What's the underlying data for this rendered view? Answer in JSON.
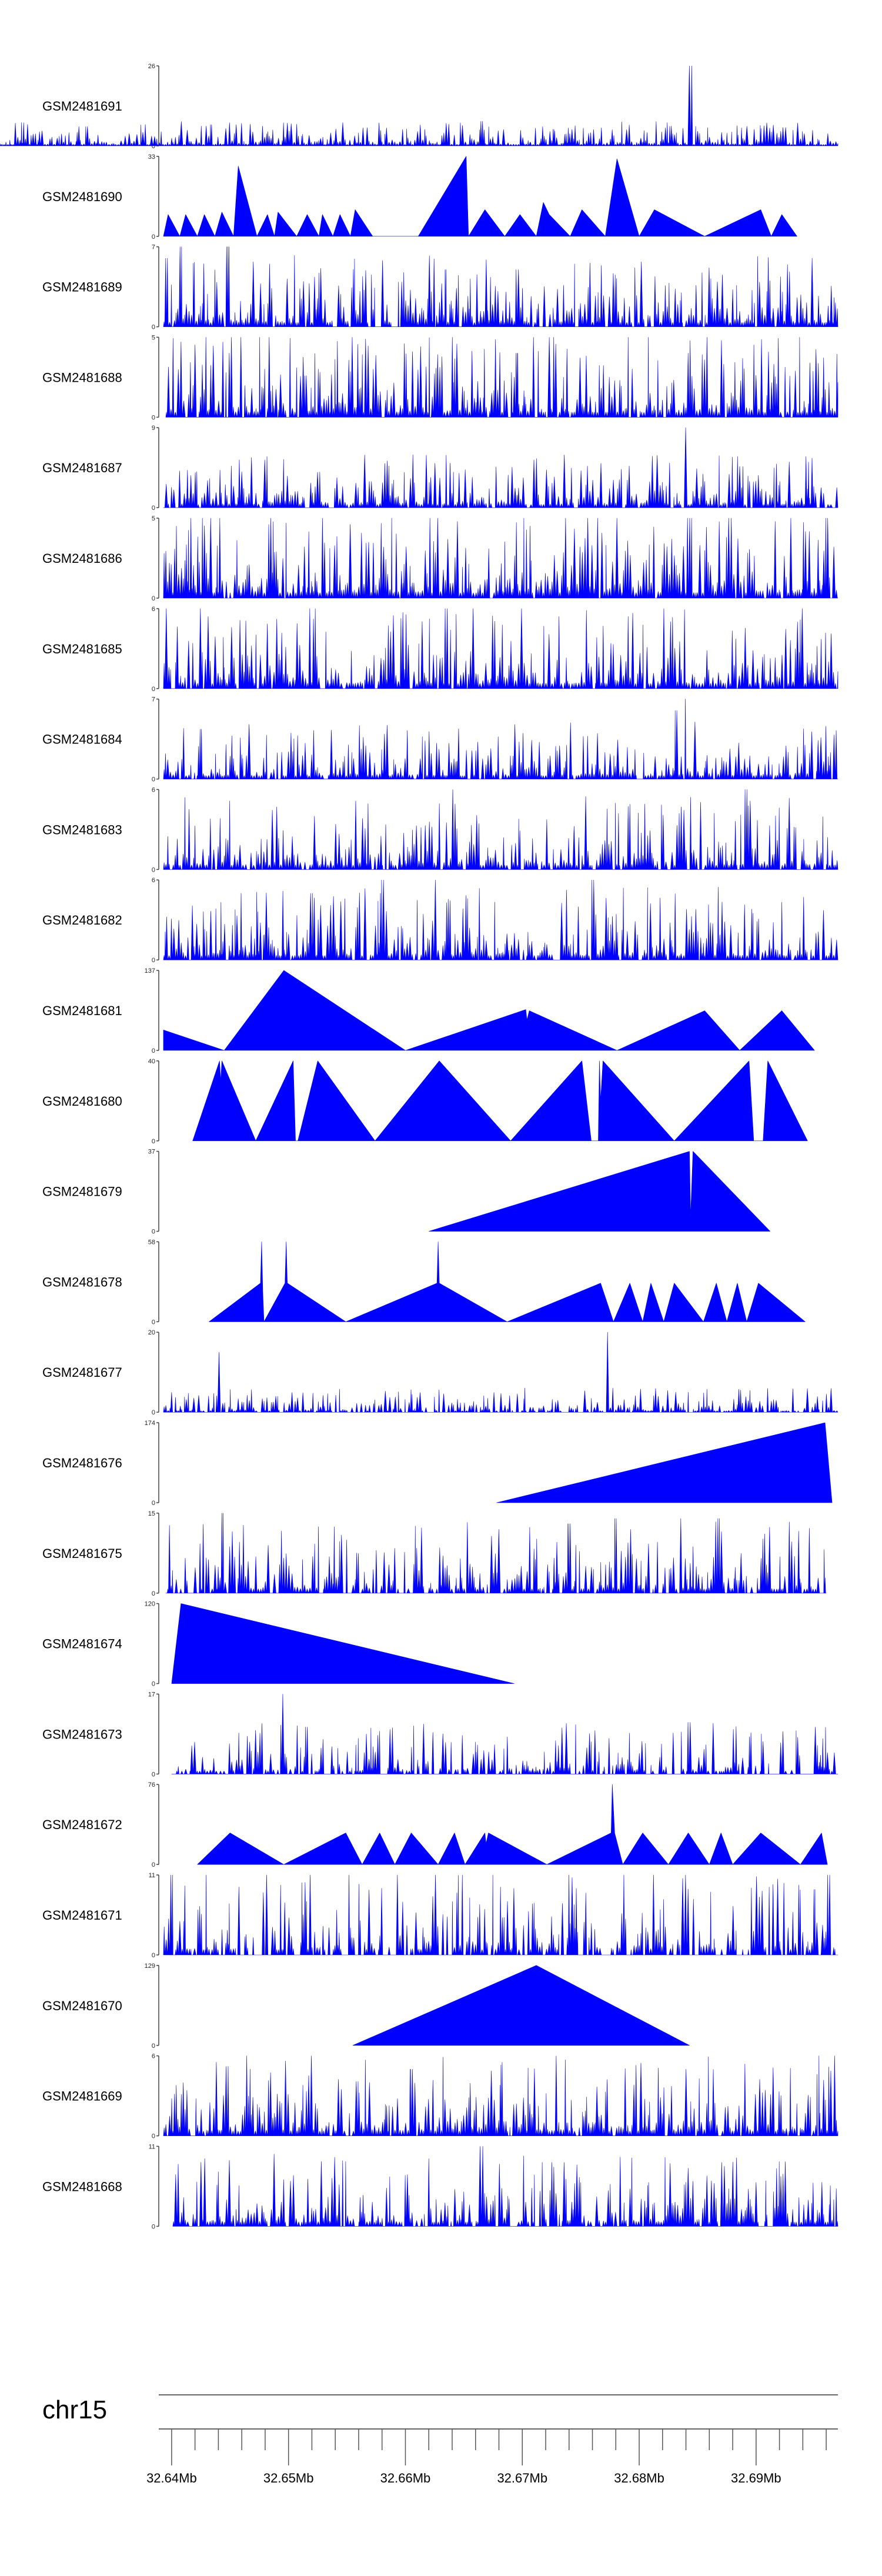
{
  "chart_data": {
    "type": "area",
    "chromosome": "chr15",
    "x_unit": "Mb",
    "xlim": [
      32.639,
      32.697
    ],
    "x_ticks": [
      32.64,
      32.65,
      32.66,
      32.67,
      32.68,
      32.69
    ],
    "x_tick_labels": [
      "32.64Mb",
      "32.65Mb",
      "32.66Mb",
      "32.67Mb",
      "32.68Mb",
      "32.69Mb"
    ],
    "minor_tick_step": 0.002,
    "fill_color": "#0000ff",
    "tracks": [
      {
        "name": "GSM2481691",
        "ymax": 26,
        "style": "dense",
        "seed": 11,
        "density": 1.0,
        "amp": 0.12,
        "start": 0.64,
        "end": 32.697,
        "peaks": [
          [
            32.6844,
            26
          ],
          [
            32.6455,
            6
          ],
          [
            32.6665,
            8
          ],
          [
            32.6924,
            6
          ]
        ]
      },
      {
        "name": "GSM2481690",
        "ymax": 33,
        "style": "tri",
        "vertices": [
          [
            32.6393,
            0
          ],
          [
            32.6397,
            9
          ],
          [
            32.6407,
            0
          ],
          [
            32.6412,
            9
          ],
          [
            32.6422,
            0
          ],
          [
            32.6428,
            9
          ],
          [
            32.6437,
            0
          ],
          [
            32.6443,
            10
          ],
          [
            32.6453,
            0
          ],
          [
            32.6457,
            29
          ],
          [
            32.6473,
            0
          ],
          [
            32.6482,
            9
          ],
          [
            32.6488,
            0
          ],
          [
            32.6491,
            10
          ],
          [
            32.6507,
            0
          ],
          [
            32.6516,
            9
          ],
          [
            32.6526,
            0
          ],
          [
            32.6529,
            9
          ],
          [
            32.6538,
            0
          ],
          [
            32.6544,
            9
          ],
          [
            32.6553,
            0
          ],
          [
            32.6557,
            11
          ],
          [
            32.6572,
            0
          ],
          [
            32.6611,
            0
          ],
          [
            32.6652,
            33
          ],
          [
            32.6654,
            0
          ],
          [
            32.6668,
            11
          ],
          [
            32.6685,
            0
          ],
          [
            32.6698,
            9
          ],
          [
            32.6712,
            0
          ],
          [
            32.6718,
            14
          ],
          [
            32.6723,
            9
          ],
          [
            32.6741,
            0
          ],
          [
            32.6751,
            11
          ],
          [
            32.6771,
            0
          ],
          [
            32.6781,
            32
          ],
          [
            32.68,
            0
          ],
          [
            32.6813,
            11
          ],
          [
            32.6856,
            0
          ],
          [
            32.6904,
            11
          ],
          [
            32.6913,
            0
          ],
          [
            32.6922,
            9
          ],
          [
            32.6935,
            0
          ]
        ]
      },
      {
        "name": "GSM2481689",
        "ymax": 7,
        "style": "dense",
        "seed": 21,
        "density": 0.92,
        "amp": 0.35,
        "start": 32.6393,
        "end": 32.697,
        "peaks": [
          [
            32.6396,
            6
          ],
          [
            32.6408,
            7
          ],
          [
            32.6448,
            7
          ],
          [
            32.6635,
            5
          ],
          [
            32.6696,
            5
          ]
        ]
      },
      {
        "name": "GSM2481688",
        "ymax": 5,
        "style": "dense",
        "seed": 31,
        "density": 0.92,
        "amp": 0.42,
        "start": 32.6395,
        "end": 32.697,
        "peaks": [
          [
            32.645,
            4
          ],
          [
            32.664,
            5
          ],
          [
            32.6695,
            4
          ],
          [
            32.6842,
            4
          ]
        ]
      },
      {
        "name": "GSM2481687",
        "ymax": 9,
        "style": "dense",
        "seed": 41,
        "density": 0.92,
        "amp": 0.26,
        "start": 32.6393,
        "end": 32.697,
        "peaks": [
          [
            32.684,
            9
          ],
          [
            32.6625,
            5
          ],
          [
            32.6525,
            4
          ]
        ]
      },
      {
        "name": "GSM2481686",
        "ymax": 5,
        "style": "dense",
        "seed": 51,
        "density": 0.95,
        "amp": 0.45,
        "start": 32.6393,
        "end": 32.697,
        "peaks": [
          [
            32.6842,
            5
          ],
          [
            32.696,
            5
          ]
        ]
      },
      {
        "name": "GSM2481685",
        "ymax": 6,
        "style": "dense",
        "seed": 61,
        "density": 0.9,
        "amp": 0.42,
        "start": 32.6393,
        "end": 32.697,
        "peaks": [
          [
            32.6396,
            6
          ],
          [
            32.6635,
            6
          ],
          [
            32.6935,
            5
          ]
        ]
      },
      {
        "name": "GSM2481684",
        "ymax": 7,
        "style": "dense",
        "seed": 71,
        "density": 0.93,
        "amp": 0.28,
        "start": 32.6393,
        "end": 32.697,
        "peaks": [
          [
            32.684,
            7
          ],
          [
            32.6832,
            6
          ],
          [
            32.6848,
            5
          ],
          [
            32.6765,
            4
          ]
        ]
      },
      {
        "name": "GSM2481683",
        "ymax": 6,
        "style": "dense",
        "seed": 81,
        "density": 0.9,
        "amp": 0.36,
        "start": 32.6393,
        "end": 32.697,
        "peaks": [
          [
            32.664,
            6
          ],
          [
            32.6891,
            6
          ],
          [
            32.6522,
            4
          ]
        ]
      },
      {
        "name": "GSM2481682",
        "ymax": 6,
        "style": "dense",
        "seed": 91,
        "density": 0.9,
        "amp": 0.36,
        "start": 32.6393,
        "end": 32.697,
        "peaks": [
          [
            32.658,
            6
          ],
          [
            32.6625,
            6
          ],
          [
            32.676,
            6
          ],
          [
            32.652,
            5
          ]
        ]
      },
      {
        "name": "GSM2481681",
        "ymax": 137,
        "style": "tri",
        "vertices": [
          [
            32.6393,
            0
          ],
          [
            32.6393,
            35
          ],
          [
            32.6445,
            0
          ],
          [
            32.6496,
            137
          ],
          [
            32.66,
            0
          ],
          [
            32.6703,
            70
          ],
          [
            32.6704,
            52
          ],
          [
            32.6706,
            68
          ],
          [
            32.6781,
            0
          ],
          [
            32.6856,
            68
          ],
          [
            32.6886,
            0
          ],
          [
            32.6922,
            68
          ],
          [
            32.695,
            0
          ]
        ]
      },
      {
        "name": "GSM2481680",
        "ymax": 40,
        "style": "tri",
        "vertices": [
          [
            32.6418,
            0
          ],
          [
            32.6441,
            40
          ],
          [
            32.6442,
            30
          ],
          [
            32.6443,
            40
          ],
          [
            32.6472,
            0
          ],
          [
            32.6504,
            40
          ],
          [
            32.6506,
            0
          ],
          [
            32.6508,
            0
          ],
          [
            32.6525,
            40
          ],
          [
            32.6574,
            0
          ],
          [
            32.6629,
            40
          ],
          [
            32.669,
            0
          ],
          [
            32.6751,
            40
          ],
          [
            32.6759,
            0
          ],
          [
            32.6765,
            0
          ],
          [
            32.6766,
            40
          ],
          [
            32.6767,
            20
          ],
          [
            32.6769,
            40
          ],
          [
            32.683,
            0
          ],
          [
            32.6894,
            40
          ],
          [
            32.6898,
            0
          ],
          [
            32.6906,
            0
          ],
          [
            32.691,
            40
          ],
          [
            32.6944,
            0
          ]
        ]
      },
      {
        "name": "GSM2481679",
        "ymax": 37,
        "style": "tri",
        "vertices": [
          [
            32.662,
            0
          ],
          [
            32.6843,
            37
          ],
          [
            32.6844,
            7
          ],
          [
            32.6846,
            37
          ],
          [
            32.6912,
            0
          ]
        ]
      },
      {
        "name": "GSM2481678",
        "ymax": 58,
        "style": "tri",
        "vertices": [
          [
            32.6432,
            0
          ],
          [
            32.6476,
            28
          ],
          [
            32.6477,
            58
          ],
          [
            32.6478,
            22
          ],
          [
            32.6479,
            0
          ],
          [
            32.6497,
            28
          ],
          [
            32.6498,
            58
          ],
          [
            32.6499,
            28
          ],
          [
            32.6549,
            0
          ],
          [
            32.6627,
            28
          ],
          [
            32.6628,
            58
          ],
          [
            32.6629,
            28
          ],
          [
            32.6687,
            0
          ],
          [
            32.6767,
            28
          ],
          [
            32.6778,
            0
          ],
          [
            32.6792,
            28
          ],
          [
            32.6803,
            0
          ],
          [
            32.681,
            28
          ],
          [
            32.6821,
            0
          ],
          [
            32.683,
            28
          ],
          [
            32.6855,
            0
          ],
          [
            32.6866,
            28
          ],
          [
            32.6875,
            0
          ],
          [
            32.6884,
            28
          ],
          [
            32.6892,
            0
          ],
          [
            32.6902,
            28
          ],
          [
            32.6942,
            0
          ]
        ]
      },
      {
        "name": "GSM2481677",
        "ymax": 20,
        "style": "dense",
        "seed": 131,
        "density": 0.75,
        "amp": 0.12,
        "start": 32.6393,
        "end": 32.697,
        "peaks": [
          [
            32.644,
            15
          ],
          [
            32.6774,
            20
          ],
          [
            32.649,
            4
          ],
          [
            32.6842,
            5
          ]
        ]
      },
      {
        "name": "GSM2481676",
        "ymax": 174,
        "style": "tri",
        "vertices": [
          [
            32.6678,
            0
          ],
          [
            32.6959,
            174
          ],
          [
            32.6965,
            0
          ]
        ]
      },
      {
        "name": "GSM2481675",
        "ymax": 15,
        "style": "dense",
        "seed": 151,
        "density": 0.78,
        "amp": 0.35,
        "start": 32.6395,
        "end": 32.696,
        "peaks": [
          [
            32.6444,
            15
          ],
          [
            32.678,
            14
          ],
          [
            32.6835,
            14
          ],
          [
            32.6868,
            14
          ],
          [
            32.674,
            13
          ]
        ]
      },
      {
        "name": "GSM2481674",
        "ymax": 120,
        "style": "tri",
        "vertices": [
          [
            32.64,
            0
          ],
          [
            32.6408,
            120
          ],
          [
            32.6693,
            0
          ]
        ]
      },
      {
        "name": "GSM2481673",
        "ymax": 17,
        "style": "dense",
        "seed": 171,
        "density": 0.7,
        "amp": 0.25,
        "start": 32.64,
        "end": 32.697,
        "peaks": [
          [
            32.6495,
            17
          ],
          [
            32.6515,
            10
          ],
          [
            32.6843,
            11
          ]
        ]
      },
      {
        "name": "GSM2481672",
        "ymax": 76,
        "style": "tri",
        "vertices": [
          [
            32.6422,
            0
          ],
          [
            32.645,
            30
          ],
          [
            32.6496,
            0
          ],
          [
            32.6549,
            30
          ],
          [
            32.6563,
            0
          ],
          [
            32.6578,
            30
          ],
          [
            32.6591,
            0
          ],
          [
            32.6605,
            30
          ],
          [
            32.6628,
            0
          ],
          [
            32.6642,
            30
          ],
          [
            32.6651,
            0
          ],
          [
            32.6668,
            30
          ],
          [
            32.6669,
            20
          ],
          [
            32.6671,
            30
          ],
          [
            32.6721,
            0
          ],
          [
            32.6776,
            30
          ],
          [
            32.6777,
            76
          ],
          [
            32.6779,
            30
          ],
          [
            32.6786,
            0
          ],
          [
            32.6803,
            30
          ],
          [
            32.6825,
            0
          ],
          [
            32.6842,
            30
          ],
          [
            32.686,
            0
          ],
          [
            32.687,
            30
          ],
          [
            32.688,
            0
          ],
          [
            32.6904,
            30
          ],
          [
            32.6938,
            0
          ],
          [
            32.6956,
            30
          ],
          [
            32.6961,
            0
          ]
        ]
      },
      {
        "name": "GSM2481671",
        "ymax": 11,
        "style": "dense",
        "seed": 191,
        "density": 0.72,
        "amp": 0.45,
        "start": 32.6393,
        "end": 32.697,
        "peaks": [
          [
            32.64,
            11
          ],
          [
            32.6625,
            11
          ],
          [
            32.6962,
            11
          ],
          [
            32.695,
            9
          ]
        ]
      },
      {
        "name": "GSM2481670",
        "ymax": 129,
        "style": "tri",
        "vertices": [
          [
            32.6555,
            0
          ],
          [
            32.6712,
            129
          ],
          [
            32.6843,
            0
          ]
        ]
      },
      {
        "name": "GSM2481669",
        "ymax": 6,
        "style": "dense",
        "seed": 211,
        "density": 0.92,
        "amp": 0.4,
        "start": 32.6393,
        "end": 32.697,
        "peaks": [
          [
            32.652,
            6
          ],
          [
            32.6605,
            5
          ],
          [
            32.684,
            5
          ]
        ]
      },
      {
        "name": "GSM2481668",
        "ymax": 11,
        "style": "dense",
        "seed": 221,
        "density": 0.82,
        "amp": 0.36,
        "start": 32.6401,
        "end": 32.697,
        "peaks": [
          [
            32.6665,
            11
          ],
          [
            32.6505,
            7
          ],
          [
            32.66,
            7
          ]
        ]
      }
    ]
  }
}
